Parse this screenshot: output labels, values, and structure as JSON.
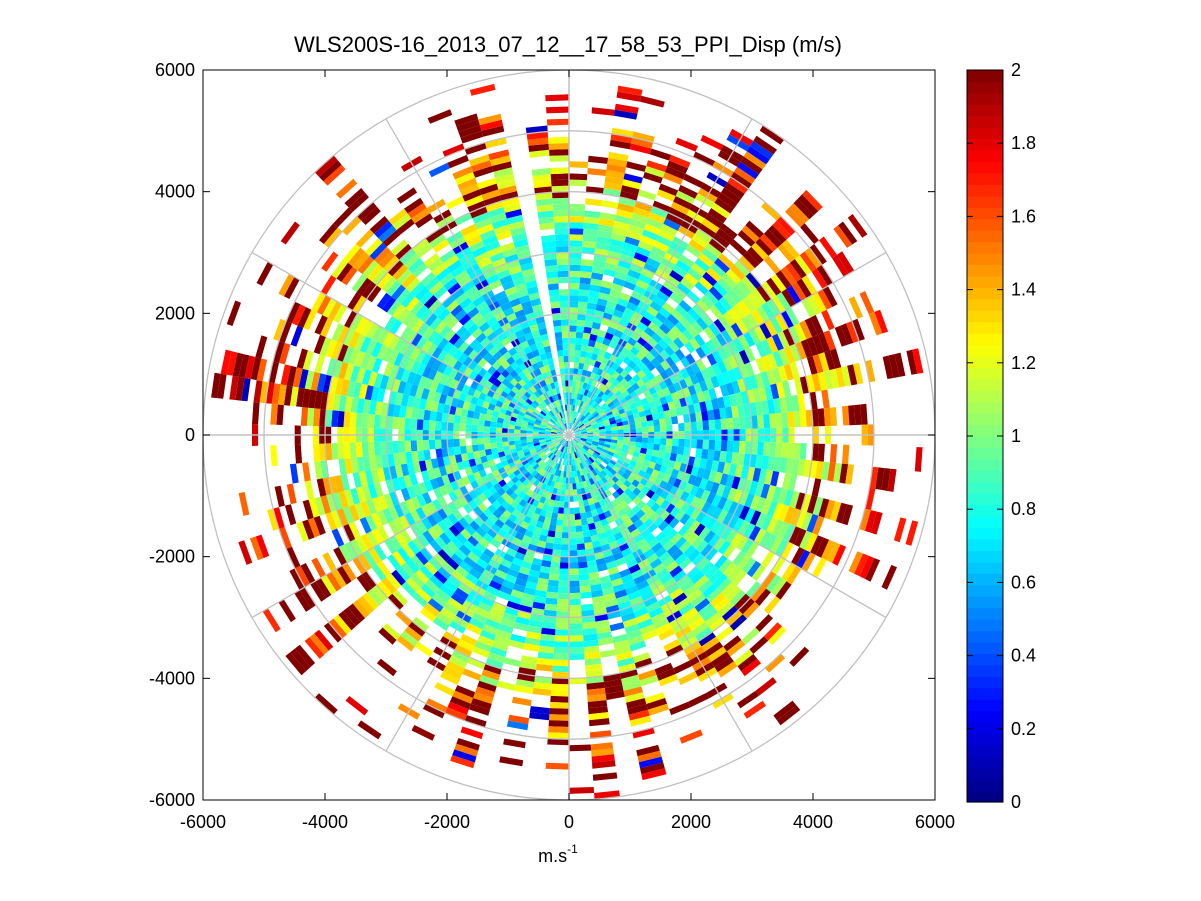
{
  "chart_data": {
    "type": "heatmap",
    "subtype": "polar-ppi",
    "title": "WLS200S-16_2013_07_12__17_58_53_PPI_Disp (m/s)",
    "xlabel_base": "m.s",
    "xlabel_exponent": "-1",
    "ylabel": "",
    "xlim": [
      -6000,
      6000
    ],
    "ylim": [
      -6000,
      6000
    ],
    "xticks": [
      -6000,
      -4000,
      -2000,
      0,
      2000,
      4000,
      6000
    ],
    "yticks": [
      -6000,
      -4000,
      -2000,
      0,
      2000,
      4000,
      6000
    ],
    "xtick_labels": [
      "-6000",
      "-4000",
      "-2000",
      "0",
      "2000",
      "4000",
      "6000"
    ],
    "ytick_labels": [
      "-6000",
      "-4000",
      "-2000",
      "0",
      "2000",
      "4000",
      "6000"
    ],
    "colorbar": {
      "min": 0,
      "max": 2,
      "ticks": [
        0,
        0.2,
        0.4,
        0.6,
        0.8,
        1,
        1.2,
        1.4,
        1.6,
        1.8,
        2
      ],
      "tick_labels": [
        "0",
        "0.2",
        "0.4",
        "0.6",
        "0.8",
        "1",
        "1.2",
        "1.4",
        "1.6",
        "1.8",
        "2"
      ],
      "colormap": "jet"
    },
    "polar_grid": {
      "ring_radii": [
        1000,
        2000,
        3000,
        4000,
        5000,
        6000
      ],
      "spoke_angles_deg": [
        0,
        30,
        60,
        90,
        120,
        150,
        180,
        210,
        240,
        270,
        300,
        330
      ],
      "grid_color": "#c0c0c0"
    },
    "scan": {
      "range_gate_start": 100,
      "range_gate_step": 100,
      "max_range": 6000,
      "azimuth_step_deg": 4,
      "gaps_azimuth_deg": [
        [
          0,
          2
        ],
        [
          -13,
          -9
        ]
      ],
      "typical_value_near": 0.8,
      "typical_value_far": 2.0
    }
  }
}
